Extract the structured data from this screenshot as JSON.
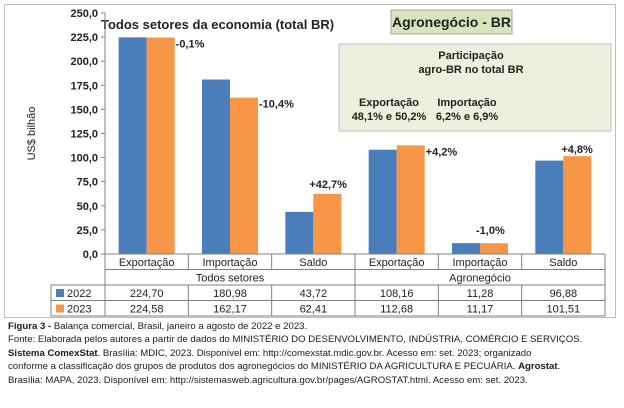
{
  "chart_data": {
    "type": "bar",
    "ylabel": "US$ bilhão",
    "ylim": [
      0,
      250
    ],
    "yticks": [
      "0,0",
      "25,0",
      "50,0",
      "75,0",
      "100,0",
      "125,0",
      "150,0",
      "175,0",
      "200,0",
      "225,0",
      "250,0"
    ],
    "categories": [
      "Exportação",
      "Importação",
      "Saldo",
      "Exportação",
      "Importação",
      "Saldo"
    ],
    "groups": [
      "Todos setores",
      "Agronegócio"
    ],
    "series": [
      {
        "name": "2022",
        "color": "#4a7ebb",
        "values": [
          224.7,
          180.98,
          43.72,
          108.16,
          11.28,
          96.88
        ],
        "labels": [
          "224,70",
          "180,98",
          "43,72",
          "108,16",
          "11,28",
          "96,88"
        ]
      },
      {
        "name": "2023",
        "color": "#f79646",
        "values": [
          224.58,
          162.17,
          62.41,
          112.68,
          11.17,
          101.51
        ],
        "labels": [
          "224,58",
          "162,17",
          "62,41",
          "112,68",
          "11,17",
          "101,51"
        ]
      }
    ],
    "change_labels": [
      "-0,1%",
      "-10,4%",
      "+42,7%",
      "+4,2%",
      "-1,0%",
      "+4,8%"
    ],
    "annotations": {
      "left_title": "Todos setores da economia (total BR)",
      "right_title": "Agronegócio - BR",
      "share_title_line1": "Participação",
      "share_title_line2": "agro-BR no total BR",
      "share_exp_label": "Exportação",
      "share_exp_value": "48,1% e 50,2%",
      "share_imp_label": "Importação",
      "share_imp_value": "6,2% e 6,9%"
    },
    "grid": false,
    "legend": "table-left"
  },
  "caption": {
    "fig_label": "Figura 3 -",
    "fig_text": " Balança comercial, Brasil, janeiro a agosto de 2022 e 2023.",
    "line2": "Fonte: Elaborada pelos autores a partir de dados do MINISTÉRIO DO DESENVOLVIMENTO, INDÚSTRIA, COMÉRCIO E SERVIÇOS.",
    "line3_bold": "Sistema ComexStat",
    "line3": ". Brasília: MDIC, 2023. Disponível em: http://comexstat.mdic.gov.br. Acesso em: set. 2023; organizado",
    "line4": "conforme a classificação dos grupos de produtos dos agronegócios do MINISTÉRIO DA AGRICULTURA E PECUÁRIA. ",
    "line4_bold": "Agrostat",
    "line4_end": ".",
    "line5": "Brasília: MAPA, 2023. Disponível em: http://sistemasweb.agricultura.gov.br/pages/AGROSTAT.html. Acesso em: set. 2023."
  }
}
